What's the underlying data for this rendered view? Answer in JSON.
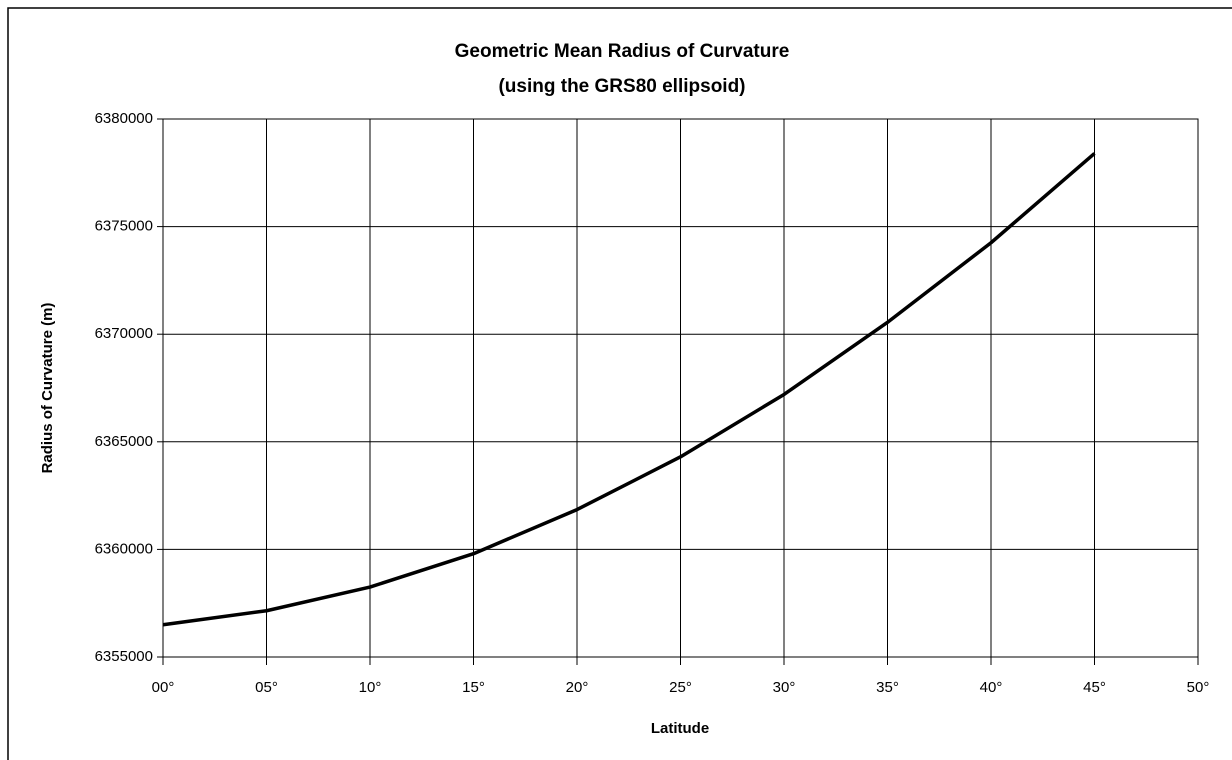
{
  "chart_data": {
    "type": "line",
    "title": "Geometric Mean Radius of Curvature",
    "subtitle": "(using the GRS80 ellipsoid)",
    "x_label": "Latitude",
    "y_label": "Radius of Curvature (m)",
    "x": [
      0,
      5,
      10,
      15,
      20,
      25,
      30,
      35,
      40,
      45
    ],
    "series": [
      {
        "name": "Radius of Curvature",
        "color": "#000000",
        "values": [
          6356500,
          6357150,
          6358250,
          6359800,
          6361850,
          6364300,
          6367200,
          6370550,
          6374250,
          6378400
        ]
      }
    ],
    "xlim": [
      0,
      50
    ],
    "xticks": [
      {
        "value": 0,
        "label": "00°"
      },
      {
        "value": 5,
        "label": "05°"
      },
      {
        "value": 10,
        "label": "10°"
      },
      {
        "value": 15,
        "label": "15°"
      },
      {
        "value": 20,
        "label": "20°"
      },
      {
        "value": 25,
        "label": "25°"
      },
      {
        "value": 30,
        "label": "30°"
      },
      {
        "value": 35,
        "label": "35°"
      },
      {
        "value": 40,
        "label": "40°"
      },
      {
        "value": 45,
        "label": "45°"
      },
      {
        "value": 50,
        "label": "50°"
      }
    ],
    "ylim": [
      6355000,
      6380000
    ],
    "yticks": [
      6355000,
      6360000,
      6365000,
      6370000,
      6375000,
      6380000
    ],
    "grid": true
  }
}
